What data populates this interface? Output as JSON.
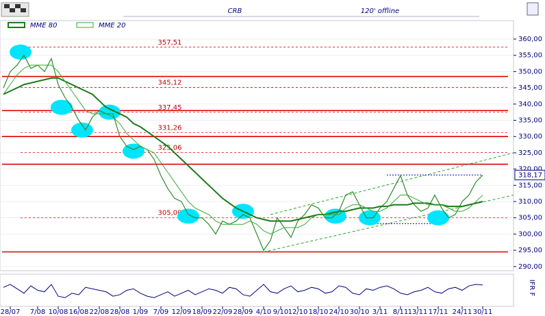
{
  "chart_data": {
    "type": "line",
    "title": "CRB",
    "subtitle": "120' offline",
    "ylim": [
      288.7,
      365.7
    ],
    "yticks": [
      {
        "value": 290,
        "label": "290,00"
      },
      {
        "value": 295,
        "label": "295,00"
      },
      {
        "value": 300,
        "label": "300,00"
      },
      {
        "value": 305,
        "label": "305,00"
      },
      {
        "value": 310,
        "label": "310,00"
      },
      {
        "value": 315,
        "label": "315,00"
      },
      {
        "value": 320,
        "label": "320,00"
      },
      {
        "value": 325,
        "label": "325,00"
      },
      {
        "value": 330,
        "label": "330,00"
      },
      {
        "value": 335,
        "label": "335,00"
      },
      {
        "value": 340,
        "label": "340,00"
      },
      {
        "value": 345,
        "label": "345,00"
      },
      {
        "value": 350,
        "label": "350,00"
      },
      {
        "value": 355,
        "label": "355,00"
      },
      {
        "value": 360,
        "label": "360,00"
      }
    ],
    "xlim": [
      -0.5,
      74.5
    ],
    "xticks": [
      {
        "value": 1,
        "label": "28/07"
      },
      {
        "value": 5,
        "label": "7/08"
      },
      {
        "value": 8,
        "label": "10/08"
      },
      {
        "value": 11,
        "label": "16/08"
      },
      {
        "value": 14,
        "label": "22/08"
      },
      {
        "value": 17,
        "label": "28/08"
      },
      {
        "value": 20,
        "label": "1/09"
      },
      {
        "value": 23,
        "label": "7/09"
      },
      {
        "value": 26,
        "label": "12/09"
      },
      {
        "value": 29,
        "label": "18/09"
      },
      {
        "value": 32,
        "label": "22/09"
      },
      {
        "value": 35,
        "label": "28/09"
      },
      {
        "value": 38,
        "label": "4/10"
      },
      {
        "value": 40.5,
        "label": "9/10"
      },
      {
        "value": 43,
        "label": "12/10"
      },
      {
        "value": 46,
        "label": "18/10"
      },
      {
        "value": 49,
        "label": "24/10"
      },
      {
        "value": 52,
        "label": "30/10"
      },
      {
        "value": 55,
        "label": "3/11"
      },
      {
        "value": 58,
        "label": "8/11"
      },
      {
        "value": 60.5,
        "label": "13/11"
      },
      {
        "value": 63.5,
        "label": "17/11"
      },
      {
        "value": 67,
        "label": "24/11"
      },
      {
        "value": 70,
        "label": "30/11"
      }
    ],
    "grid": true,
    "series": [
      {
        "color": "#2a8a2a",
        "values": [
          345,
          350,
          352,
          355,
          351,
          352,
          350,
          354,
          346,
          342,
          339,
          335,
          332,
          336,
          338,
          337,
          337,
          330,
          327,
          326,
          327,
          326,
          323,
          318,
          314,
          311,
          310,
          306,
          305,
          305,
          303,
          300,
          304,
          303,
          304,
          306,
          305,
          300,
          295,
          298,
          305,
          302,
          299,
          304,
          306,
          309,
          308,
          305,
          305,
          307,
          312,
          313,
          309,
          305,
          305,
          308,
          310,
          314,
          318,
          312,
          309,
          307,
          308,
          312,
          308,
          305,
          306,
          310,
          312,
          316,
          318.17
        ]
      },
      {
        "name": "MME 80",
        "color": "#1a7a1a",
        "values": [
          343,
          344,
          345,
          346,
          346.5,
          347,
          347.5,
          348,
          348,
          347,
          346,
          345,
          344,
          343,
          341,
          339,
          338,
          337,
          336,
          334,
          333,
          331.5,
          330,
          328.5,
          327,
          325,
          323,
          321,
          319,
          317,
          315,
          313,
          311,
          309.5,
          308,
          307,
          306,
          305,
          304.5,
          304,
          304,
          304,
          304,
          304.5,
          305,
          305.5,
          306,
          306,
          306.5,
          307,
          307,
          307.5,
          308,
          308,
          308,
          308.5,
          308.5,
          309,
          309,
          309,
          309.5,
          309.5,
          309.5,
          309,
          309,
          308.5,
          308.5,
          308.5,
          309,
          309.5,
          310
        ]
      },
      {
        "name": "MME 20",
        "color": "#33aa33",
        "values": [
          343,
          346,
          349,
          351,
          352,
          352,
          352,
          352,
          350,
          347,
          344,
          341,
          338,
          337,
          337,
          337,
          336,
          334,
          331,
          329,
          327,
          326,
          325,
          322,
          319,
          316,
          313,
          310,
          308,
          307,
          306,
          304,
          303,
          303,
          303,
          303,
          304,
          303,
          301,
          300,
          301,
          302,
          302,
          302,
          303,
          305,
          306,
          306,
          306,
          306,
          308,
          309,
          309,
          308,
          307,
          307,
          308,
          310,
          312,
          312,
          311,
          310,
          309,
          309,
          309,
          308,
          307,
          307,
          308,
          310,
          312
        ]
      }
    ],
    "support_lines": [
      348.5,
      338,
      330,
      321.5,
      294.5
    ],
    "levels": [
      {
        "value": 357.51,
        "label": "357,51"
      },
      {
        "value": 345.12,
        "label": "345,12"
      },
      {
        "value": 337.45,
        "label": "337,45"
      },
      {
        "value": 331.26,
        "label": "331,26"
      },
      {
        "value": 325.06,
        "label": "325,06"
      },
      {
        "value": 305,
        "label": "305,00"
      }
    ],
    "range_lines": [
      {
        "value": 318.17,
        "label": "318,17",
        "from": 56,
        "to": 70
      },
      {
        "value": 303.2,
        "from": 53,
        "to": 64
      }
    ],
    "trendlines": [
      {
        "x": [
          38,
          74.5
        ],
        "y": [
          294.5,
          312
        ]
      },
      {
        "x": [
          39,
          74.5
        ],
        "y": [
          306,
          325
        ]
      }
    ],
    "highlights": [
      {
        "x": 2.5,
        "y": 356
      },
      {
        "x": 8.5,
        "y": 339
      },
      {
        "x": 11.5,
        "y": 332
      },
      {
        "x": 15.5,
        "y": 337.5
      },
      {
        "x": 19,
        "y": 325.5
      },
      {
        "x": 27,
        "y": 305.5
      },
      {
        "x": 35,
        "y": 307
      },
      {
        "x": 48.5,
        "y": 305.5
      },
      {
        "x": 53.5,
        "y": 305
      },
      {
        "x": 63.5,
        "y": 305
      }
    ],
    "oscillator": {
      "name": "IFR F",
      "color": "#000080",
      "ylim": [
        0,
        100
      ],
      "values": [
        60,
        70,
        55,
        40,
        65,
        50,
        45,
        70,
        30,
        25,
        40,
        35,
        60,
        55,
        50,
        45,
        30,
        35,
        50,
        55,
        40,
        30,
        25,
        35,
        45,
        30,
        40,
        50,
        35,
        45,
        55,
        50,
        40,
        60,
        55,
        35,
        30,
        50,
        70,
        45,
        40,
        55,
        65,
        45,
        50,
        60,
        55,
        40,
        45,
        65,
        60,
        40,
        35,
        55,
        50,
        60,
        65,
        55,
        40,
        35,
        45,
        50,
        60,
        45,
        40,
        55,
        60,
        50,
        65,
        70,
        68
      ]
    }
  }
}
